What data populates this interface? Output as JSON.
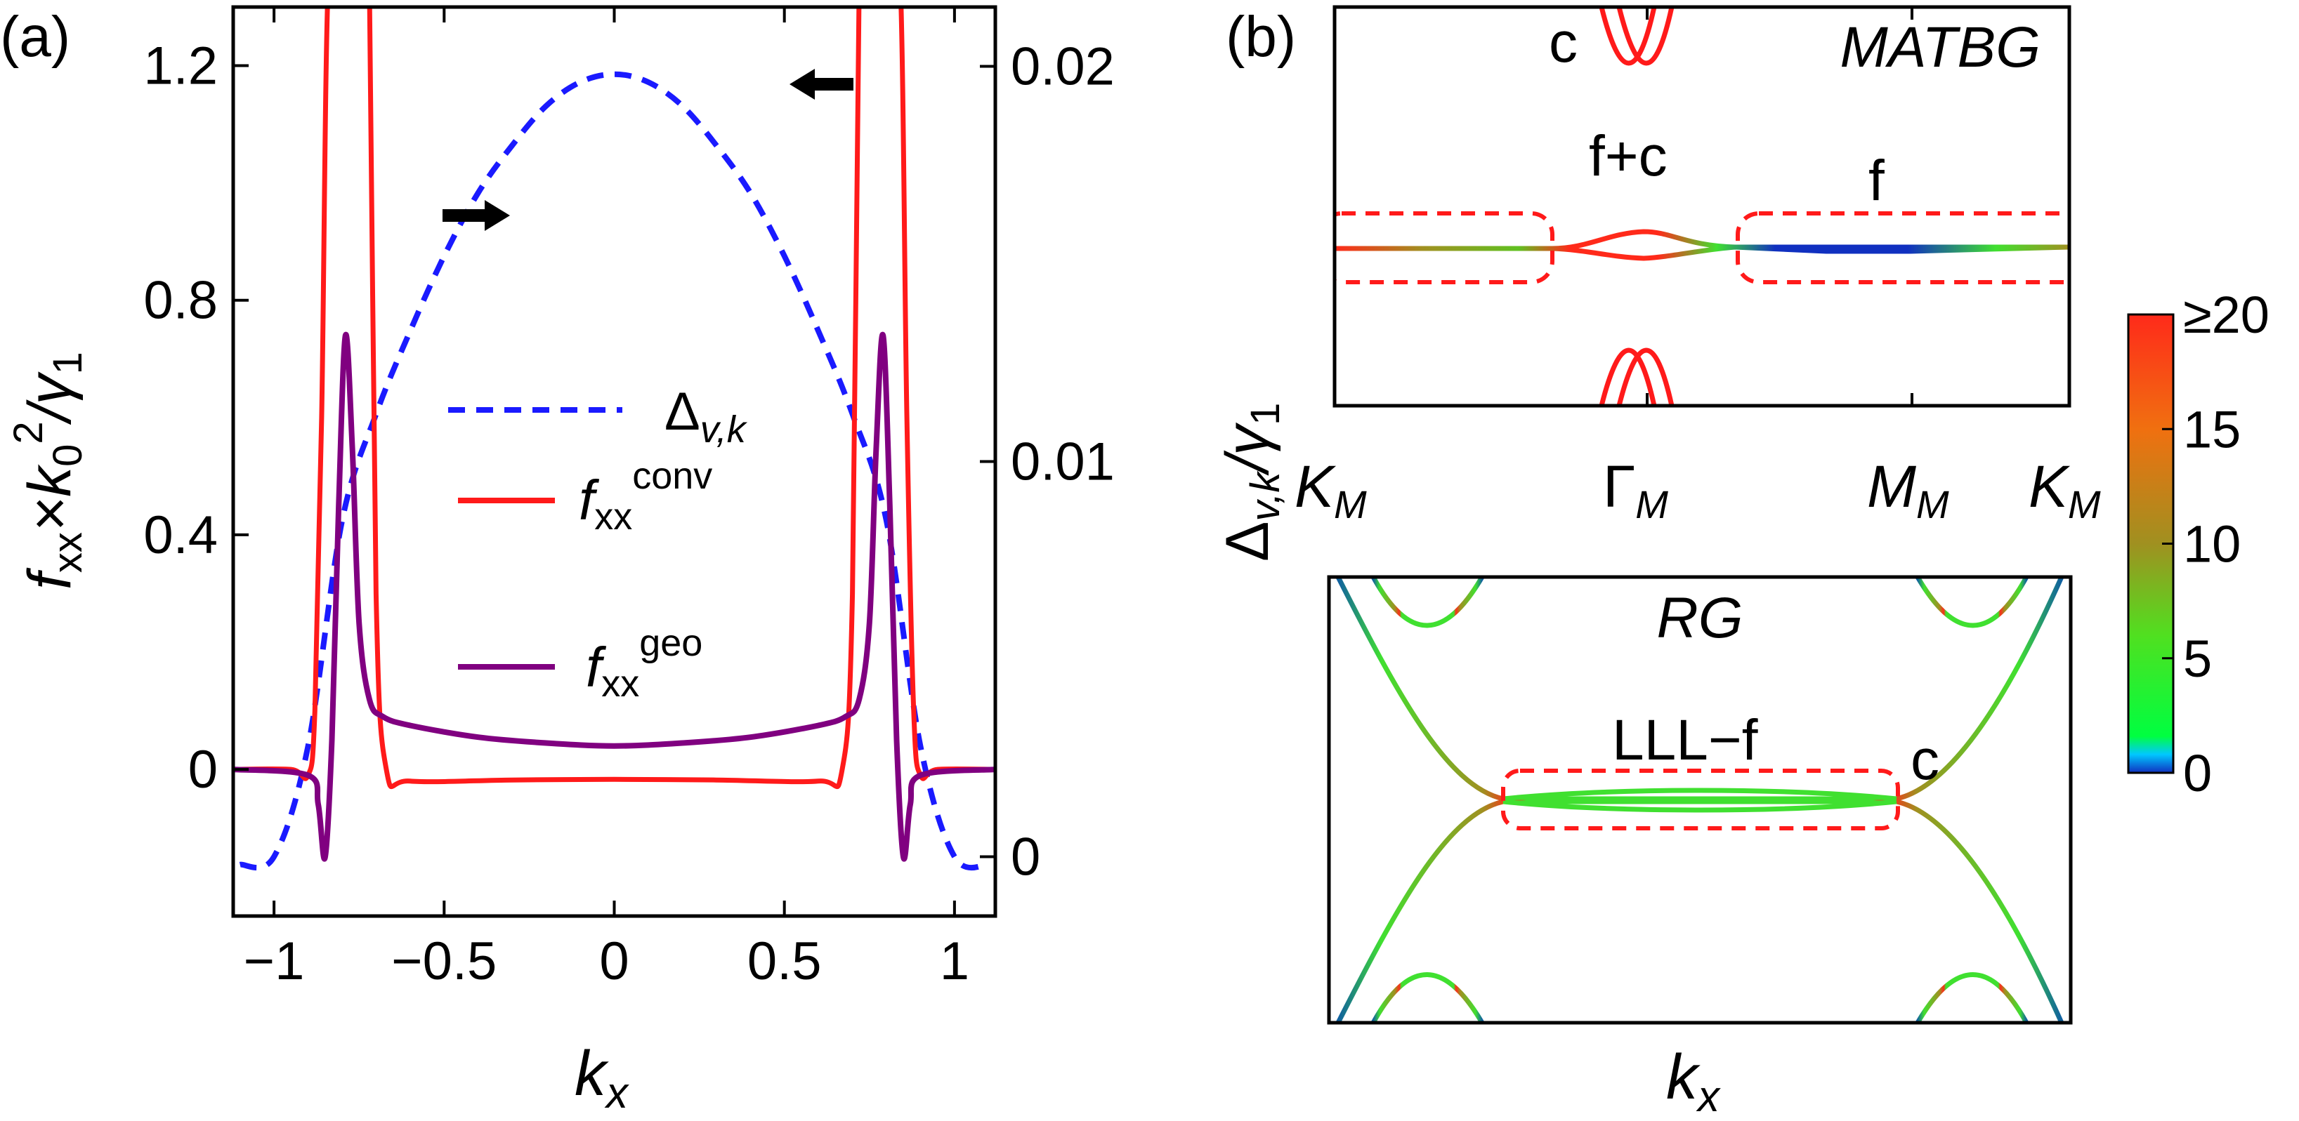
{
  "panel_a": {
    "label": "(a)",
    "ylabel_left": "f",
    "ylabel_left_sub": "xx",
    "ylabel_left_rest": "×k",
    "ylabel_left_sub0": "0",
    "ylabel_left_sup": "2",
    "ylabel_left_div": "/γ",
    "ylabel_left_sub1": "1",
    "xlabel": "k",
    "xlabel_sub": "x",
    "yticks_left": [
      "1.2",
      "0.8",
      "0.4",
      "0"
    ],
    "yticks_right": [
      "0.02",
      "0.01",
      "0"
    ],
    "xticks": [
      "−1",
      "−0.5",
      "0",
      "0.5",
      "1"
    ],
    "legend": {
      "delta": "Δ",
      "delta_sub": "v,k",
      "conv": "f",
      "conv_sub": "xx",
      "conv_sup": "conv",
      "geo": "f",
      "geo_sub": "xx",
      "geo_sup": "geo"
    },
    "colors": {
      "delta": "#1a1aff",
      "conv": "#ff1a1a",
      "geo": "#800080"
    }
  },
  "panel_b": {
    "label": "(b)",
    "ylabel": "Δ",
    "ylabel_sub": "v,k",
    "ylabel_div": "/γ",
    "ylabel_sub1": "1",
    "top_title": "MATBG",
    "top_annotations": {
      "c": "c",
      "fc": "f+c",
      "f": "f"
    },
    "top_xticks": [
      {
        "main": "K",
        "sub": "M"
      },
      {
        "main": "Γ",
        "sub": "M"
      },
      {
        "main": "M",
        "sub": "M"
      },
      {
        "main": "K",
        "sub": "M"
      }
    ],
    "bottom_title": "RG",
    "bottom_annotations": {
      "lll": "LLL−f",
      "c": "c"
    },
    "bottom_xlabel": "k",
    "bottom_xlabel_sub": "x"
  },
  "colorbar": {
    "ticks": [
      "≥20",
      "15",
      "10",
      "5",
      "0"
    ],
    "colors": [
      "#ff2a1a",
      "#f07010",
      "#a09020",
      "#40e030",
      "#00ff40",
      "#1030c0"
    ]
  },
  "chart_data": [
    {
      "type": "line",
      "panel": "(a)",
      "xlabel": "k_x",
      "ylabel": "f_xx × k_0^2/γ_1",
      "ylabel_right": "Δ_v,k",
      "xlim": [
        -1.12,
        1.12
      ],
      "ylim": [
        -0.25,
        1.3
      ],
      "ylim_right": [
        -0.0015,
        0.0215
      ],
      "series": [
        {
          "name": "Δ_v,k",
          "axis": "right",
          "style": "dashed",
          "x": [
            -1.1,
            -1.0,
            -0.9,
            -0.8,
            -0.7,
            -0.6,
            -0.5,
            -0.4,
            -0.3,
            -0.2,
            -0.1,
            0,
            0.1,
            0.2,
            0.3,
            0.4,
            0.5,
            0.6,
            0.7,
            0.8,
            0.9,
            1.0,
            1.1
          ],
          "values": [
            -0.0002,
            0.0,
            0.0028,
            0.0085,
            0.0112,
            0.0133,
            0.0152,
            0.0168,
            0.018,
            0.019,
            0.0196,
            0.0198,
            0.0196,
            0.019,
            0.018,
            0.0168,
            0.0152,
            0.0133,
            0.0112,
            0.0085,
            0.0028,
            0.0,
            -0.0002
          ]
        },
        {
          "name": "f_xx^conv",
          "axis": "left",
          "x": [
            -1.12,
            -0.95,
            -0.9,
            -0.88,
            -0.86,
            -0.84,
            -0.8,
            -0.76,
            -0.74,
            -0.72,
            -0.7,
            -0.67,
            -0.6,
            -0.3,
            0,
            0.3,
            0.6,
            0.67,
            0.7,
            0.72,
            0.74,
            0.76,
            0.8,
            0.84,
            0.86,
            0.88,
            0.9,
            0.95,
            1.12
          ],
          "values": [
            0.0,
            0.0,
            -0.01,
            0.1,
            0.6,
            1.35,
            1.35,
            1.35,
            1.35,
            1.35,
            0.3,
            0.0,
            -0.02,
            -0.018,
            -0.017,
            -0.018,
            -0.02,
            0.0,
            0.3,
            1.35,
            1.35,
            1.35,
            1.35,
            1.35,
            0.6,
            0.1,
            -0.01,
            0.0,
            0.0
          ]
        },
        {
          "name": "f_xx^geo",
          "axis": "left",
          "x": [
            -1.12,
            -0.9,
            -0.87,
            -0.85,
            -0.83,
            -0.81,
            -0.79,
            -0.77,
            -0.75,
            -0.72,
            -0.68,
            -0.6,
            -0.4,
            -0.2,
            0,
            0.2,
            0.4,
            0.6,
            0.68,
            0.72,
            0.75,
            0.77,
            0.79,
            0.81,
            0.83,
            0.85,
            0.87,
            0.9,
            1.12
          ],
          "values": [
            0.0,
            -0.01,
            -0.06,
            -0.15,
            0.05,
            0.45,
            0.74,
            0.55,
            0.25,
            0.12,
            0.09,
            0.075,
            0.055,
            0.045,
            0.04,
            0.045,
            0.055,
            0.075,
            0.09,
            0.12,
            0.25,
            0.55,
            0.74,
            0.45,
            0.05,
            -0.15,
            -0.06,
            -0.01,
            0.0
          ]
        }
      ]
    },
    {
      "type": "line",
      "panel": "(b) MATBG",
      "xlabel": "",
      "ylabel": "Δ_v,k/γ_1",
      "x_categories": [
        "K_M",
        "Γ_M",
        "M_M",
        "K_M"
      ],
      "series": [
        {
          "name": "",
          "x": [
            "K_M",
            "Γ_M",
            "M_M",
            "K_M"
          ],
          "values": [
            0.0,
            0.04,
            0.0,
            0.0
          ]
        },
        {
          "name": "",
          "x": [
            "K_M",
            "Γ_M",
            "M_M",
            "K_M"
          ],
          "values": [
            0.0,
            -0.02,
            0.0,
            0.0
          ]
        }
      ]
    },
    {
      "type": "line",
      "panel": "(b) RG",
      "xlabel": "k_x",
      "ylabel": "Δ_v,k/γ_1",
      "series": [
        {
          "name": "",
          "x": [
            -1,
            -0.5,
            0,
            0.5,
            1
          ],
          "values": [
            1.0,
            0.02,
            0.01,
            0.02,
            1.0
          ]
        },
        {
          "name": "",
          "x": [
            -1,
            -0.5,
            0,
            0.5,
            1
          ],
          "values": [
            -1.0,
            -0.02,
            -0.01,
            -0.02,
            -1.0
          ]
        }
      ]
    }
  ]
}
